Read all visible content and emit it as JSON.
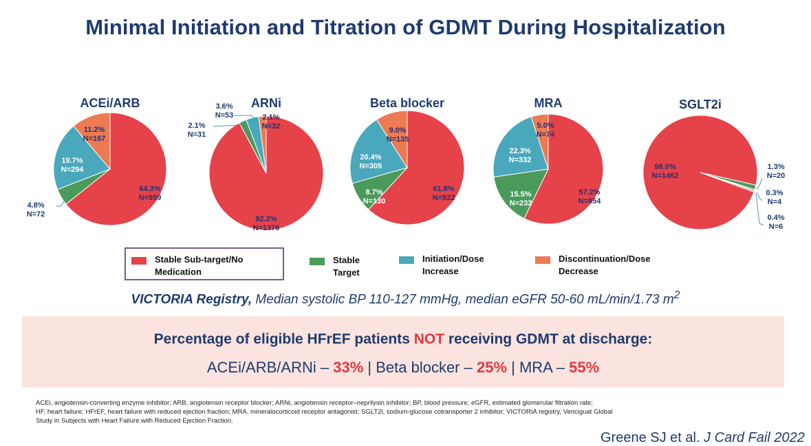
{
  "title": "Minimal Initiation and Titration of GDMT During Hospitalization",
  "colors": {
    "stable_subtarget": "#e5424a",
    "stable_target": "#4a9a5c",
    "initiation": "#4aa8bc",
    "discontinuation": "#ec7a52",
    "title": "#1f3b6e",
    "highlight": "#e0393f",
    "banner_bg": "#fbe3df"
  },
  "legend": {
    "items": [
      {
        "key": "stable_subtarget",
        "line1": "Stable Sub-target/No",
        "line2": "Medication"
      },
      {
        "key": "stable_target",
        "line1": "Stable",
        "line2": "Target"
      },
      {
        "key": "initiation",
        "line1": "Initiation/Dose",
        "line2": "Increase"
      },
      {
        "key": "discontinuation",
        "line1": "Discontinuation/Dose",
        "line2": "Decrease"
      }
    ]
  },
  "chart_data": [
    {
      "type": "pie",
      "title": "ACEi/ARB",
      "categories": [
        "Stable Sub-target/No Medication",
        "Stable Target",
        "Initiation/Dose Increase",
        "Discontinuation/Dose Decrease"
      ],
      "values": [
        64.3,
        4.8,
        19.7,
        11.2
      ],
      "n": [
        959,
        72,
        294,
        167
      ],
      "labels": [
        "64.3%|N=959",
        "4.8%|N=72",
        "19.7%|N=294",
        "11.2%|N=167"
      ]
    },
    {
      "type": "pie",
      "title": "ARNi",
      "categories": [
        "Stable Sub-target/No Medication",
        "Stable Target",
        "Initiation/Dose Increase",
        "Discontinuation/Dose Decrease"
      ],
      "values": [
        92.2,
        2.1,
        3.6,
        2.1
      ],
      "n": [
        1376,
        31,
        53,
        32
      ],
      "labels": [
        "92.2%|N=1376",
        "2.1%|N=31",
        "3.6%|N=53",
        "2.1%|N=32"
      ]
    },
    {
      "type": "pie",
      "title": "Beta blocker",
      "categories": [
        "Stable Sub-target/No Medication",
        "Stable Target",
        "Initiation/Dose Increase",
        "Discontinuation/Dose Decrease"
      ],
      "values": [
        61.8,
        8.7,
        20.4,
        9.0
      ],
      "n": [
        922,
        130,
        305,
        135
      ],
      "labels": [
        "61.8%|N=922",
        "8.7%|N=130",
        "20.4%|N=305",
        "9.0%|N=135"
      ]
    },
    {
      "type": "pie",
      "title": "MRA",
      "categories": [
        "Stable Sub-target/No Medication",
        "Stable Target",
        "Initiation/Dose Increase",
        "Discontinuation/Dose Decrease"
      ],
      "values": [
        57.2,
        15.5,
        22.3,
        5.0
      ],
      "n": [
        854,
        232,
        332,
        74
      ],
      "labels": [
        "57.2%|N=854",
        "15.5%|N=232",
        "22.3%|N=332",
        "5.0%|N=74"
      ]
    },
    {
      "type": "pie",
      "title": "SGLT2i",
      "categories": [
        "Stable Sub-target/No Medication",
        "Stable Target",
        "Initiation/Dose Increase",
        "Discontinuation/Dose Decrease"
      ],
      "values": [
        98.0,
        1.3,
        0.3,
        0.4
      ],
      "n": [
        1462,
        20,
        4,
        6
      ],
      "labels": [
        "98.0%|N=1462",
        "1.3%|N=20",
        "0.3%|N=4",
        "0.4%|N=6"
      ]
    }
  ],
  "registry": {
    "bold": "VICTORIA Registry,",
    "text": " Median systolic BP 110-127 mmHg, median eGFR 50-60 mL/min/1.73 m",
    "sup": "2"
  },
  "banner": {
    "line1_pre": "Percentage of eligible HFrEF patients ",
    "line1_em": "NOT",
    "line1_post": " receiving GDMT at discharge:",
    "items": [
      {
        "label": "ACEi/ARB/ARNi – ",
        "value": "33%"
      },
      {
        "label": "Beta blocker – ",
        "value": "25%"
      },
      {
        "label": "MRA – ",
        "value": "55%"
      }
    ],
    "separator": " | "
  },
  "footnote": [
    "ACEi, angiotensin-converting enzyme inhibitor; ARB, angiotensin receptor blocker; ARNi, angiotensin receptor–neprilysin inhibitor; BP, blood pressure; eGFR, estimated glomerular filtration rate;",
    "HF, heart failure; HFrEF, heart failure with reduced ejection fraction; MRA, mineralocorticoid receptor antagonist; SGLT2i, sodium-glucose cotransporter 2 inhibitor; VICTORIA registry, Vericiguat Global",
    "Study in Subjects with Heart Failure with Reduced Ejection Fraction."
  ],
  "citation": {
    "authors": "Greene SJ et al. ",
    "journal": "J Card Fail 2022"
  }
}
